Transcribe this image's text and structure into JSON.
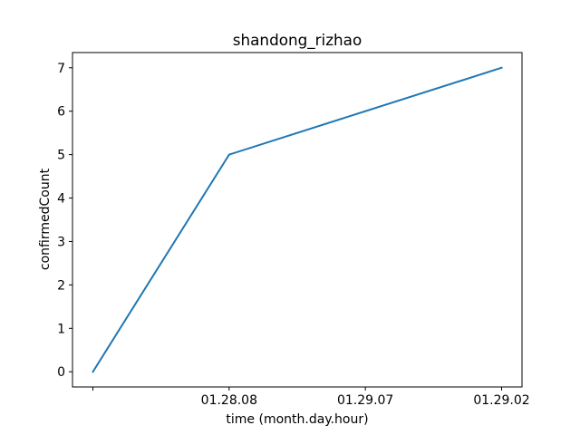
{
  "chart_data": {
    "type": "line",
    "title": "shandong_rizhao",
    "xlabel": "time (month.day.hour)",
    "ylabel": "confirmedCount",
    "categories": [
      "",
      "01.28.08",
      "01.29.07",
      "01.29.02"
    ],
    "x_tick_labels": [
      "",
      "01.28.08",
      "01.29.07",
      "01.29.02"
    ],
    "series": [
      {
        "values": [
          0,
          5,
          null,
          7
        ],
        "color": "#1f77b4"
      }
    ],
    "y_ticks": [
      0,
      1,
      2,
      3,
      4,
      5,
      6,
      7
    ],
    "ylim": [
      -0.35,
      7.35
    ],
    "grid": false,
    "legend": "none"
  }
}
